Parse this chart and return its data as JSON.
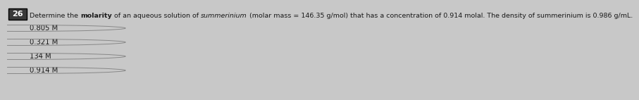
{
  "question_number": "26",
  "question_number_bg": "#3a3a3a",
  "question_number_color": "#ffffff",
  "question_line": "Determine the |molarity| of an aqueous solution of ~summerinium~ (molar mass = 146.35 g/mol) that has a concentration of 0.914 molal. The density of summerinium is 0.986 g/mL.",
  "choices": [
    "0.805 M",
    "0.321 M",
    "134 M",
    "0.914 M"
  ],
  "bg_color": "#c8c8c8",
  "text_color": "#1a1a1a",
  "font_size_question": 6.8,
  "font_size_choices": 7.2,
  "font_size_number": 8.0
}
